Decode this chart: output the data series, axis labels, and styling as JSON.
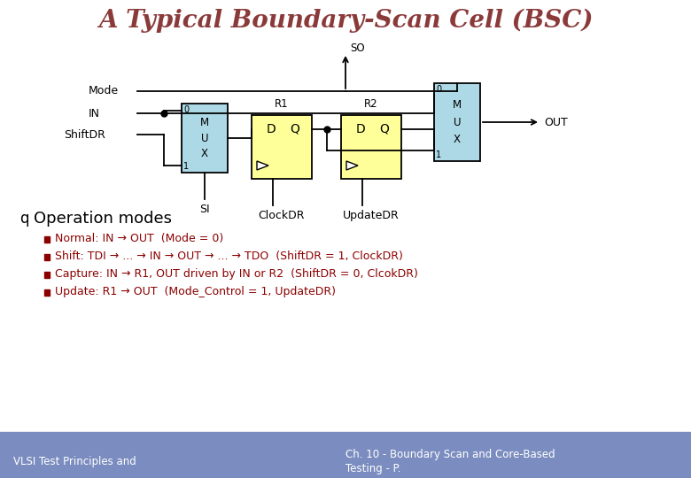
{
  "title": "A Typical Boundary-Scan Cell (BSC)",
  "title_color": "#8B3A3A",
  "title_fontsize": 20,
  "bg_color": "#ffffff",
  "footer_bg_color": "#8090B8",
  "footer_left": "VLSI Test Principles and",
  "footer_right_line1": "Ch. 10 - Boundary Scan and Core-Based",
  "footer_right_line2": "Testing - P.",
  "footer_color": "#ffffff",
  "operation_header": "Operation modes",
  "bullet_color": "#8B0000",
  "bullets": [
    "Normal: IN → OUT  (Mode = 0)",
    "Shift: TDI → ... → IN → OUT → ... → TDO  (ShiftDR = 1, ClockDR)",
    "Capture: IN → R1, OUT driven by IN or R2  (ShiftDR = 0, ClcokDR)",
    "Update: R1 → OUT  (Mode_Control = 1, UpdateDR)"
  ],
  "mux_color": "#ADD8E6",
  "ff_color": "#FFFF99",
  "wire_color": "#000000",
  "lw": 1.3
}
